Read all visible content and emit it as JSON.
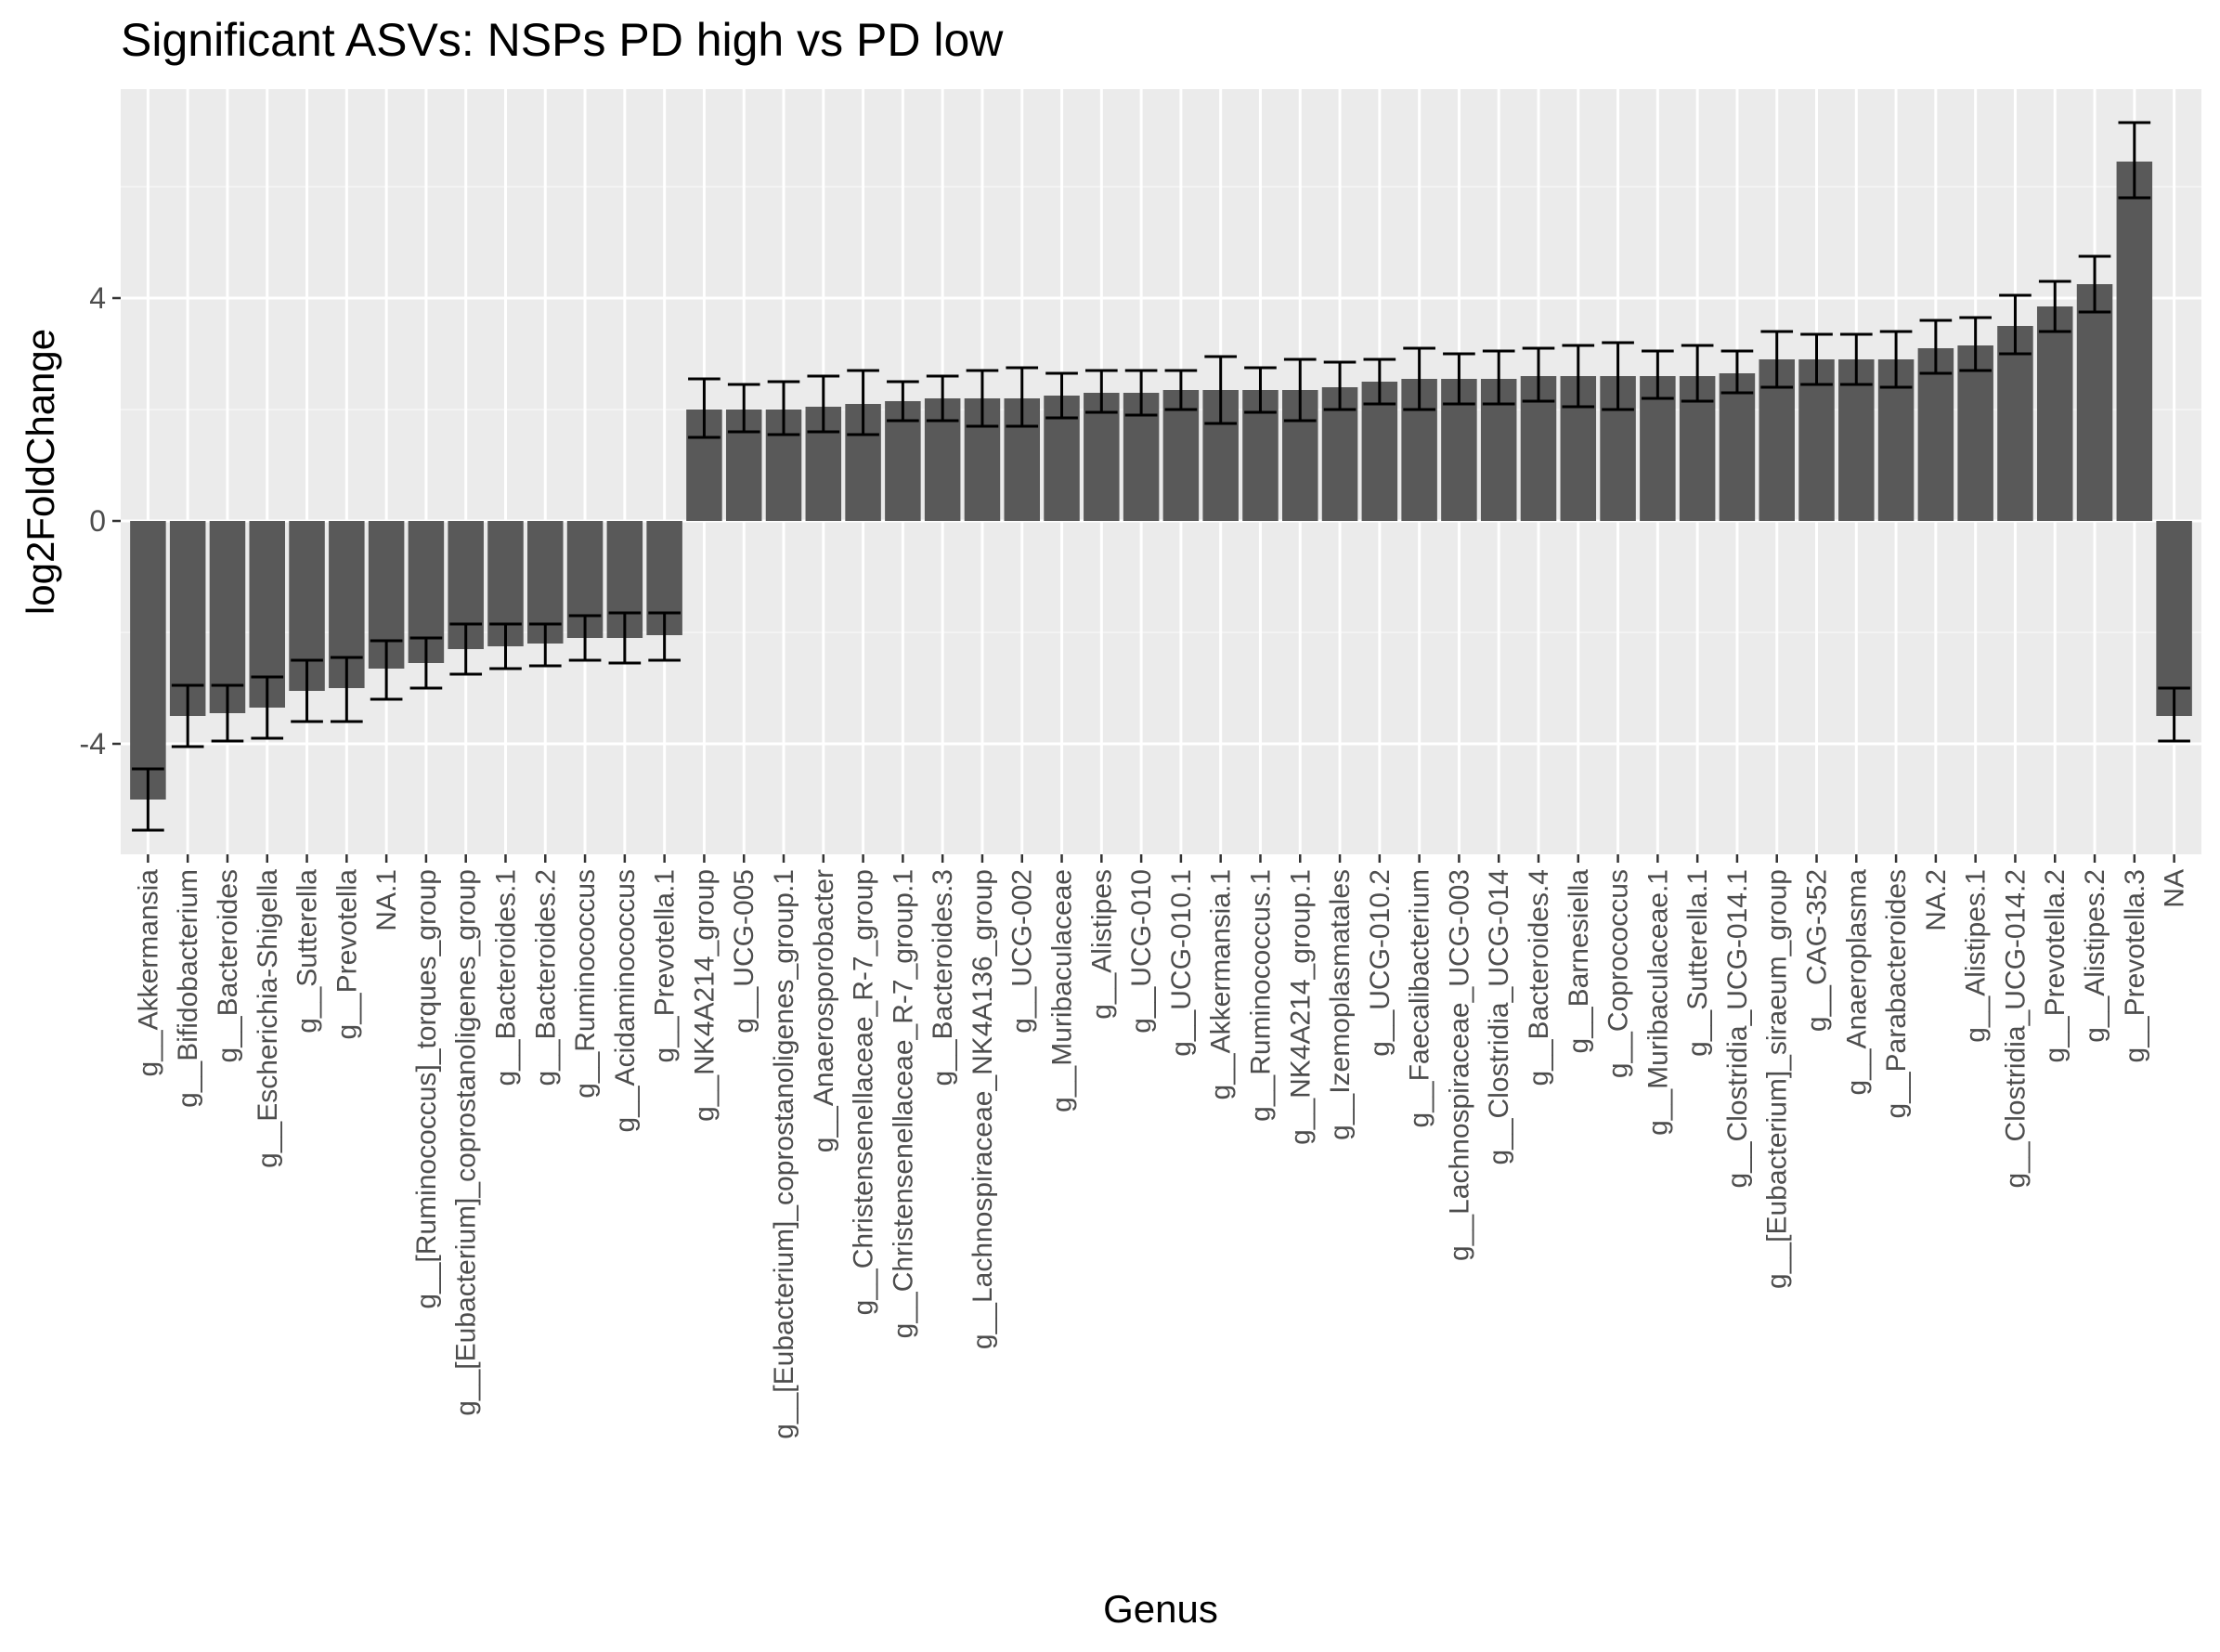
{
  "chart_data": {
    "type": "bar",
    "title": "Significant ASVs: NSPs PD high vs PD low",
    "xlabel": "Genus",
    "ylabel": "log2FoldChange",
    "ylim": [
      -6.1,
      7.7
    ],
    "yticks": [
      -4,
      0,
      4
    ],
    "grid": true,
    "legend": "none",
    "categories": [
      "g__Akkermansia",
      "g__Bifidobacterium",
      "g__Bacteroides",
      "g__Escherichia-Shigella",
      "g__Sutterella",
      "g__Prevotella",
      "NA.1",
      "g__[Ruminococcus]_torques_group",
      "g__[Eubacterium]_coprostanoligenes_group",
      "g__Bacteroides.1",
      "g__Bacteroides.2",
      "g__Ruminococcus",
      "g__Acidaminococcus",
      "g__Prevotella.1",
      "g__NK4A214_group",
      "g__UCG-005",
      "g__[Eubacterium]_coprostanoligenes_group.1",
      "g__Anaerosporobacter",
      "g__Christensenellaceae_R-7_group",
      "g__Christensenellaceae_R-7_group.1",
      "g__Bacteroides.3",
      "g__Lachnospiraceae_NK4A136_group",
      "g__UCG-002",
      "g__Muribaculaceae",
      "g__Alistipes",
      "g__UCG-010",
      "g__UCG-010.1",
      "g__Akkermansia.1",
      "g__Ruminococcus.1",
      "g__NK4A214_group.1",
      "g__Izemoplasmatales",
      "g__UCG-010.2",
      "g__Faecalibacterium",
      "g__Lachnospiraceae_UCG-003",
      "g__Clostridia_UCG-014",
      "g__Bacteroides.4",
      "g__Barnesiella",
      "g__Coprococcus",
      "g__Muribaculaceae.1",
      "g__Sutterella.1",
      "g__Clostridia_UCG-014.1",
      "g__[Eubacterium]_siraeum_group",
      "g__CAG-352",
      "g__Anaeroplasma",
      "g__Parabacteroides",
      "NA.2",
      "g__Alistipes.1",
      "g__Clostridia_UCG-014.2",
      "g__Prevotella.2",
      "g__Alistipes.2",
      "g__Prevotella.3",
      "NA"
    ],
    "values": [
      -5.0,
      -3.5,
      -3.45,
      -3.35,
      -3.05,
      -3.0,
      -2.65,
      -2.55,
      -2.3,
      -2.25,
      -2.2,
      -2.1,
      -2.1,
      -2.05,
      2.0,
      2.0,
      2.0,
      2.05,
      2.1,
      2.15,
      2.2,
      2.2,
      2.2,
      2.25,
      2.3,
      2.3,
      2.35,
      2.35,
      2.35,
      2.35,
      2.4,
      2.5,
      2.55,
      2.55,
      2.55,
      2.6,
      2.6,
      2.6,
      2.6,
      2.6,
      2.65,
      2.9,
      2.9,
      2.9,
      2.9,
      3.1,
      3.15,
      3.5,
      3.85,
      4.25,
      6.45,
      -3.5
    ],
    "error_low": [
      -5.55,
      -4.05,
      -3.95,
      -3.9,
      -3.6,
      -3.6,
      -3.2,
      -3.0,
      -2.75,
      -2.65,
      -2.6,
      -2.5,
      -2.55,
      -2.5,
      1.5,
      1.6,
      1.55,
      1.6,
      1.55,
      1.8,
      1.8,
      1.7,
      1.7,
      1.85,
      1.95,
      1.9,
      2.0,
      1.75,
      1.95,
      1.8,
      2.0,
      2.1,
      2.0,
      2.1,
      2.1,
      2.15,
      2.05,
      2.0,
      2.2,
      2.15,
      2.3,
      2.4,
      2.45,
      2.45,
      2.4,
      2.65,
      2.7,
      3.0,
      3.4,
      3.75,
      5.8,
      -3.95
    ],
    "error_high": [
      -4.45,
      -2.95,
      -2.95,
      -2.8,
      -2.5,
      -2.45,
      -2.15,
      -2.1,
      -1.85,
      -1.85,
      -1.85,
      -1.7,
      -1.65,
      -1.65,
      2.55,
      2.45,
      2.5,
      2.6,
      2.7,
      2.5,
      2.6,
      2.7,
      2.75,
      2.65,
      2.7,
      2.7,
      2.7,
      2.95,
      2.75,
      2.9,
      2.85,
      2.9,
      3.1,
      3.0,
      3.05,
      3.1,
      3.15,
      3.2,
      3.05,
      3.15,
      3.05,
      3.4,
      3.35,
      3.35,
      3.4,
      3.6,
      3.65,
      4.05,
      4.3,
      4.75,
      7.15,
      -3.0
    ],
    "colors": {
      "bar": "#595959",
      "panel": "#ebebeb",
      "grid_major": "#ffffff",
      "error_bar": "#000000",
      "tick_text": "#4d4d4d"
    }
  }
}
